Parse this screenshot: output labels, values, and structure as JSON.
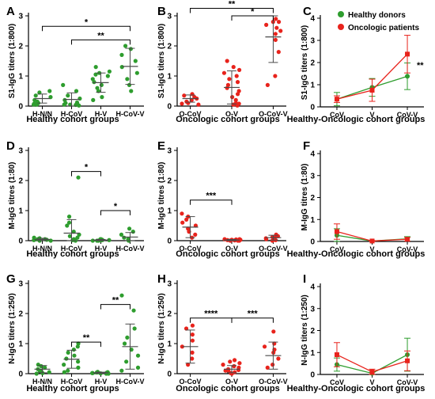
{
  "figure": {
    "colors": {
      "healthy": "#2e9d2e",
      "oncologic": "#e8231c",
      "axis": "#000000",
      "error": "#4a4a4a"
    },
    "legend_entries": [
      "Healthy donors",
      "Oncologic patients"
    ]
  },
  "chart_data": [
    {
      "panel": "A",
      "type": "scatter",
      "ylabel": "S1-IgG titers (1:800)",
      "xlabel": "Healthy cohort groups",
      "categories": [
        "H-N/N",
        "H-CoV",
        "H-V",
        "H-CoV-V"
      ],
      "ylim": [
        0,
        3
      ],
      "yticks": [
        0,
        1,
        2,
        3
      ],
      "color": "healthy",
      "points": [
        [
          0.05,
          0.05,
          0.08,
          0.1,
          0.15,
          0.2,
          0.3,
          0.35,
          0.45,
          0.5
        ],
        [
          0.02,
          0.04,
          0.05,
          0.05,
          0.08,
          0.1,
          0.12,
          0.2,
          0.25,
          0.35,
          0.5,
          0.7
        ],
        [
          0.2,
          0.3,
          0.5,
          0.6,
          0.7,
          0.8,
          0.9,
          1.0,
          1.05,
          1.1,
          1.15,
          1.3
        ],
        [
          0.5,
          0.7,
          0.9,
          1.1,
          1.3,
          1.5,
          1.7,
          1.9,
          2.0
        ]
      ],
      "mean": [
        0.25,
        0.22,
        0.78,
        1.32
      ],
      "sd": [
        0.15,
        0.22,
        0.32,
        0.6
      ],
      "significance": [
        {
          "from": "H-N/N",
          "to": "H-CoV-V",
          "label": "*",
          "y": 2.65
        },
        {
          "from": "H-CoV",
          "to": "H-CoV-V",
          "label": "**",
          "y": 2.2
        }
      ]
    },
    {
      "panel": "B",
      "type": "scatter",
      "ylabel": "S1-IgG titers (1:800)",
      "xlabel": "Oncologic cohort groups",
      "categories": [
        "O-CoV",
        "O-V",
        "O-CoV-V"
      ],
      "ylim": [
        0,
        3
      ],
      "yticks": [
        0,
        1,
        2,
        3
      ],
      "color": "oncologic",
      "points": [
        [
          0.05,
          0.08,
          0.1,
          0.15,
          0.2,
          0.25,
          0.3,
          0.35,
          0.4
        ],
        [
          0.02,
          0.05,
          0.08,
          0.1,
          0.2,
          0.3,
          0.4,
          0.5,
          0.6,
          0.7,
          0.8,
          0.9,
          1.0,
          1.1,
          1.2,
          1.3,
          1.5
        ],
        [
          0.7,
          1.0,
          1.8,
          2.2,
          2.4,
          2.5,
          2.6,
          2.7,
          2.8,
          2.8,
          2.9
        ]
      ],
      "mean": [
        0.25,
        0.62,
        2.3
      ],
      "sd": [
        0.12,
        0.55,
        0.85
      ],
      "significance": [
        {
          "from": "O-CoV",
          "to": "O-CoV-V",
          "label": "**",
          "y": 3.25
        },
        {
          "from": "O-V",
          "to": "O-CoV-V",
          "label": "*",
          "y": 3.0
        }
      ]
    },
    {
      "panel": "C",
      "type": "line",
      "ylabel": "S1-IgG titers (1:800)",
      "xlabel": "Healthy-Oncologic cohort groups",
      "categories": [
        "CoV",
        "V",
        "CoV-V"
      ],
      "ylim": [
        0,
        4
      ],
      "yticks": [
        0,
        1,
        2,
        3,
        4
      ],
      "series": [
        {
          "name": "Healthy donors",
          "color": "healthy",
          "values": [
            0.35,
            0.88,
            1.38
          ],
          "err": [
            0.3,
            0.4,
            0.6
          ]
        },
        {
          "name": "Oncologic patients",
          "color": "oncologic",
          "values": [
            0.35,
            0.75,
            2.38
          ],
          "err": [
            0.15,
            0.5,
            0.85
          ]
        }
      ],
      "annotation": "**",
      "legend": "top-right"
    },
    {
      "panel": "D",
      "type": "scatter",
      "ylabel": "M-IgG titres (1:80)",
      "xlabel": "Healthy cohort groups",
      "categories": [
        "H-N/N",
        "H-CoV",
        "H-V",
        "H-CoV-V"
      ],
      "ylim": [
        0,
        3
      ],
      "yticks": [
        0,
        1,
        2,
        3
      ],
      "color": "healthy",
      "points": [
        [
          0.0,
          0.0,
          0.02,
          0.03,
          0.05,
          0.05,
          0.08,
          0.1
        ],
        [
          0.0,
          0.02,
          0.05,
          0.1,
          0.15,
          0.2,
          0.3,
          0.5,
          0.6,
          0.8,
          2.1
        ],
        [
          0.0,
          0.0,
          0.0,
          0.01,
          0.02,
          0.02,
          0.03,
          0.05,
          0.05
        ],
        [
          0.0,
          0.02,
          0.05,
          0.1,
          0.2,
          0.3,
          0.4
        ]
      ],
      "mean": [
        0.04,
        0.25,
        0.02,
        0.12
      ],
      "sd": [
        0.04,
        0.45,
        0.02,
        0.15
      ],
      "significance": [
        {
          "from": "H-CoV",
          "to": "H-V",
          "label": "*",
          "y": 2.3
        },
        {
          "from": "H-V",
          "to": "H-CoV-V",
          "label": "*",
          "y": 1.0
        }
      ]
    },
    {
      "panel": "E",
      "type": "scatter",
      "ylabel": "M-IgG titres (1:80)",
      "xlabel": "Oncologic cohort groups",
      "categories": [
        "O-CoV",
        "O-V",
        "O-CoV-V"
      ],
      "ylim": [
        0,
        3
      ],
      "yticks": [
        0,
        1,
        2,
        3
      ],
      "color": "oncologic",
      "points": [
        [
          0.1,
          0.2,
          0.3,
          0.4,
          0.5,
          0.6,
          0.7,
          0.8,
          0.9
        ],
        [
          0.0,
          0.0,
          0.0,
          0.01,
          0.01,
          0.02,
          0.02,
          0.03,
          0.03,
          0.04,
          0.05,
          0.05
        ],
        [
          0.0,
          0.02,
          0.05,
          0.08,
          0.1,
          0.12,
          0.15,
          0.2
        ]
      ],
      "mean": [
        0.45,
        0.02,
        0.1
      ],
      "sd": [
        0.35,
        0.02,
        0.08
      ],
      "significance": [
        {
          "from": "O-CoV",
          "to": "O-V",
          "label": "***",
          "y": 1.35
        }
      ]
    },
    {
      "panel": "F",
      "type": "line",
      "ylabel": "M-IgG titres (1:80)",
      "xlabel": "Healthy-Oncologic cohort groups",
      "categories": [
        "CoV",
        "V",
        "CoV-V"
      ],
      "ylim": [
        0,
        4
      ],
      "yticks": [
        0,
        1,
        2,
        3,
        4
      ],
      "series": [
        {
          "name": "Healthy donors",
          "color": "healthy",
          "values": [
            0.28,
            0.02,
            0.12
          ],
          "err": [
            0.3,
            0.02,
            0.1
          ]
        },
        {
          "name": "Oncologic patients",
          "color": "oncologic",
          "values": [
            0.45,
            0.02,
            0.1
          ],
          "err": [
            0.35,
            0.02,
            0.08
          ]
        }
      ]
    },
    {
      "panel": "G",
      "type": "scatter",
      "ylabel": "N-IgG titers (1:250)",
      "xlabel": "Healthy cohort groups",
      "categories": [
        "H-N/N",
        "H-CoV",
        "H-V",
        "H-CoV-V"
      ],
      "ylim": [
        0,
        3
      ],
      "yticks": [
        0,
        1,
        2,
        3
      ],
      "color": "healthy",
      "points": [
        [
          0.0,
          0.02,
          0.05,
          0.08,
          0.1,
          0.15,
          0.2,
          0.25,
          0.3
        ],
        [
          0.05,
          0.1,
          0.2,
          0.3,
          0.4,
          0.5,
          0.6,
          0.7,
          0.8,
          0.9,
          1.0
        ],
        [
          0.0,
          0.0,
          0.01,
          0.01,
          0.02,
          0.02,
          0.03,
          0.04,
          0.05,
          0.05,
          0.06
        ],
        [
          0.1,
          0.2,
          0.4,
          0.6,
          0.8,
          1.0,
          1.2,
          1.5,
          2.1,
          2.6
        ]
      ],
      "mean": [
        0.15,
        0.48,
        0.03,
        0.9
      ],
      "sd": [
        0.12,
        0.3,
        0.02,
        0.75
      ],
      "significance": [
        {
          "from": "H-CoV",
          "to": "H-V",
          "label": "**",
          "y": 1.05
        },
        {
          "from": "H-V",
          "to": "H-CoV-V",
          "label": "**",
          "y": 2.3
        }
      ]
    },
    {
      "panel": "H",
      "type": "scatter",
      "ylabel": "N-IgG titers (1:250)",
      "xlabel": "Oncologic cohort groups",
      "categories": [
        "O-CoV",
        "O-V",
        "O-CoV-V"
      ],
      "ylim": [
        0,
        3
      ],
      "yticks": [
        0,
        1,
        2,
        3
      ],
      "color": "oncologic",
      "points": [
        [
          0.3,
          0.5,
          0.7,
          0.9,
          1.1,
          1.3,
          1.5,
          1.6
        ],
        [
          0.0,
          0.02,
          0.05,
          0.08,
          0.1,
          0.12,
          0.15,
          0.2,
          0.25,
          0.3,
          0.35,
          0.4,
          0.45
        ],
        [
          0.2,
          0.3,
          0.5,
          0.7,
          0.8,
          0.9,
          1.0,
          1.4
        ]
      ],
      "mean": [
        0.9,
        0.15,
        0.6
      ],
      "sd": [
        0.55,
        0.12,
        0.45
      ],
      "significance": [
        {
          "from": "O-CoV",
          "to": "O-V",
          "label": "****",
          "y": 1.85
        },
        {
          "from": "O-V",
          "to": "O-CoV-V",
          "label": "***",
          "y": 1.85
        }
      ]
    },
    {
      "panel": "I",
      "type": "line",
      "ylabel": "N-IgG titers (1:250)",
      "xlabel": "Healthy-Oncologic cohort groups",
      "categories": [
        "CoV",
        "V",
        "CoV-V"
      ],
      "ylim": [
        0,
        4
      ],
      "yticks": [
        0,
        1,
        2,
        3,
        4
      ],
      "series": [
        {
          "name": "Healthy donors",
          "color": "healthy",
          "values": [
            0.45,
            0.05,
            0.9
          ],
          "err": [
            0.3,
            0.05,
            0.75
          ]
        },
        {
          "name": "Oncologic patients",
          "color": "oncologic",
          "values": [
            0.9,
            0.12,
            0.62
          ],
          "err": [
            0.55,
            0.12,
            0.45
          ]
        }
      ]
    }
  ]
}
